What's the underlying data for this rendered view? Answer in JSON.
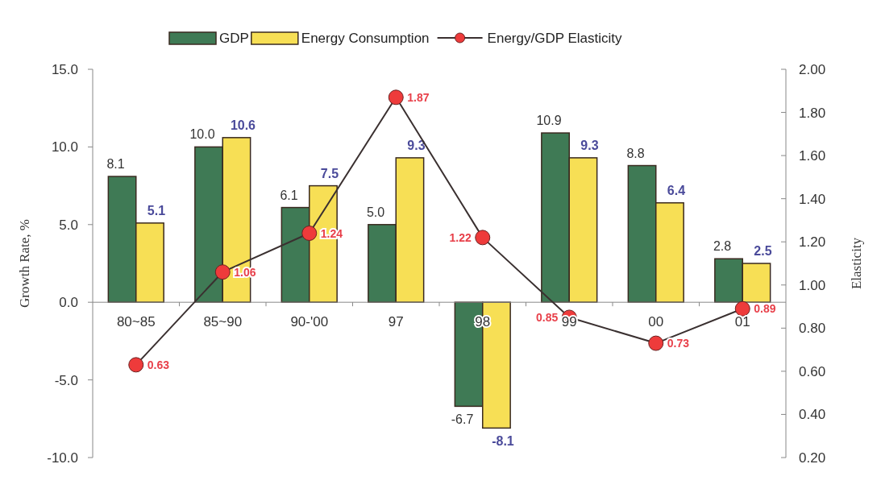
{
  "chart_data": {
    "type": "bar",
    "categories": [
      "80~85",
      "85~90",
      "90-'00",
      "97",
      "98",
      "99",
      "00",
      "01"
    ],
    "ylabel": "Growth Rate, %",
    "y2label": "Elasticity",
    "ylim": [
      -10,
      15
    ],
    "yticks": [
      {
        "value": -10,
        "label": "-10.0"
      },
      {
        "value": -5,
        "label": "-5.0"
      },
      {
        "value": 0,
        "label": "0.0"
      },
      {
        "value": 5,
        "label": "5.0"
      },
      {
        "value": 10,
        "label": "10.0"
      },
      {
        "value": 15,
        "label": "15.0"
      }
    ],
    "y2lim": [
      0.2,
      2.0
    ],
    "y2ticks": [
      {
        "value": 0.2,
        "label": "0.20"
      },
      {
        "value": 0.4,
        "label": "0.40"
      },
      {
        "value": 0.6,
        "label": "0.60"
      },
      {
        "value": 0.8,
        "label": "0.80"
      },
      {
        "value": 1.0,
        "label": "1.00"
      },
      {
        "value": 1.2,
        "label": "1.20"
      },
      {
        "value": 1.4,
        "label": "1.40"
      },
      {
        "value": 1.6,
        "label": "1.60"
      },
      {
        "value": 1.8,
        "label": "1.80"
      },
      {
        "value": 2.0,
        "label": "2.00"
      }
    ],
    "legend": "top",
    "grid": false,
    "series": [
      {
        "name": "GDP",
        "color": "#3f7a55",
        "values": [
          8.1,
          10.0,
          6.1,
          5.0,
          -6.7,
          10.9,
          8.8,
          2.8
        ],
        "value_labels": [
          "8.1",
          "10.0",
          "6.1",
          "5.0",
          "-6.7",
          "10.9",
          "8.8",
          "2.8"
        ]
      },
      {
        "name": "Energy Consumption",
        "color": "#f7df55",
        "values": [
          5.1,
          10.6,
          7.5,
          9.3,
          -8.1,
          9.3,
          6.4,
          2.5
        ],
        "value_labels": [
          "5.1",
          "10.6",
          "7.5",
          "9.3",
          "-8.1",
          "9.3",
          "6.4",
          "2.5"
        ]
      },
      {
        "name": "Energy/GDP Elasticity",
        "type": "line",
        "axis": "y2",
        "color": "#3a3030",
        "marker": "circle",
        "values": [
          0.63,
          1.06,
          1.24,
          1.87,
          1.22,
          0.85,
          0.73,
          0.89
        ],
        "value_labels": [
          "0.63",
          "1.06",
          "1.24",
          "1.87",
          "1.22",
          "0.85",
          "0.73",
          "0.89"
        ]
      }
    ]
  }
}
